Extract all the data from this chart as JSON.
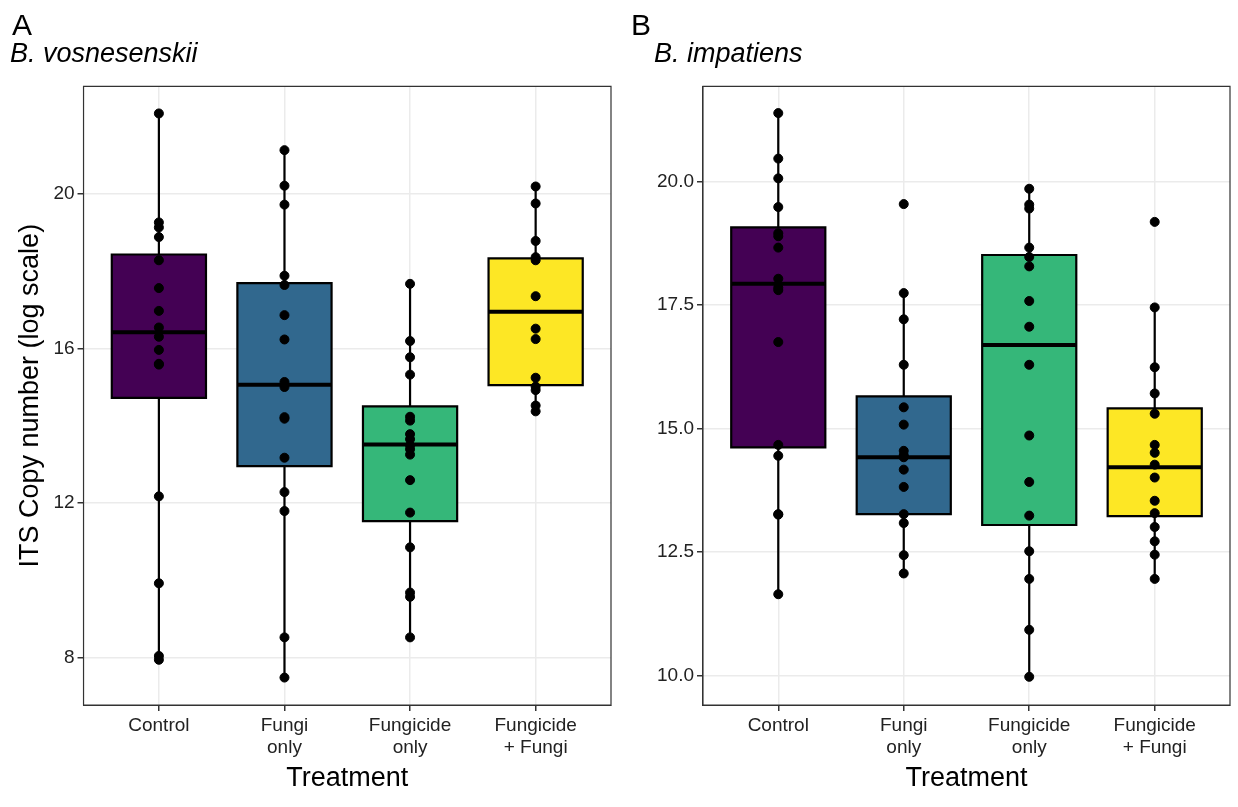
{
  "chart_data": [
    {
      "type": "box",
      "title": "B. vosnesenskii",
      "xlabel": "Treatment",
      "ylabel": "ITS Copy number (log scale)",
      "annotations": [
        "A"
      ],
      "categories": [
        "Control",
        "Fungi\nonly",
        "Fungicide\nonly",
        "Fungicide\n+ Fungi"
      ],
      "colors": [
        "#440154",
        "#31688e",
        "#35b779",
        "#fde725"
      ],
      "boxes": [
        {
          "low": 7.94,
          "q1": 14.72,
          "median": 16.42,
          "q3": 18.43,
          "high": 22.08
        },
        {
          "low": 7.48,
          "q1": 12.95,
          "median": 15.06,
          "q3": 17.69,
          "high": 21.13
        },
        {
          "low": 8.52,
          "q1": 11.53,
          "median": 13.51,
          "q3": 14.5,
          "high": 17.67
        },
        {
          "low": 14.37,
          "q1": 15.05,
          "median": 16.95,
          "q3": 18.33,
          "high": 20.19
        }
      ],
      "series": [
        {
          "type": "scatter",
          "color": "#000000",
          "x": [
            "Control",
            "Control",
            "Control",
            "Control",
            "Control",
            "Control",
            "Control",
            "Control",
            "Control",
            "Control",
            "Control",
            "Control",
            "Control",
            "Control",
            "Control",
            "Control",
            "Fungi\nonly",
            "Fungi\nonly",
            "Fungi\nonly",
            "Fungi\nonly",
            "Fungi\nonly",
            "Fungi\nonly",
            "Fungi\nonly",
            "Fungi\nonly",
            "Fungi\nonly",
            "Fungi\nonly",
            "Fungi\nonly",
            "Fungi\nonly",
            "Fungi\nonly",
            "Fungi\nonly",
            "Fungi\nonly",
            "Fungi\nonly",
            "Fungicide\nonly",
            "Fungicide\nonly",
            "Fungicide\nonly",
            "Fungicide\nonly",
            "Fungicide\nonly",
            "Fungicide\nonly",
            "Fungicide\nonly",
            "Fungicide\nonly",
            "Fungicide\nonly",
            "Fungicide\nonly",
            "Fungicide\nonly",
            "Fungicide\nonly",
            "Fungicide\nonly",
            "Fungicide\nonly",
            "Fungicide\nonly",
            "Fungicide\nonly",
            "Fungicide\nonly",
            "Fungicide\n+ Fungi",
            "Fungicide\n+ Fungi",
            "Fungicide\n+ Fungi",
            "Fungicide\n+ Fungi",
            "Fungicide\n+ Fungi",
            "Fungicide\n+ Fungi",
            "Fungicide\n+ Fungi",
            "Fungicide\n+ Fungi",
            "Fungicide\n+ Fungi",
            "Fungicide\n+ Fungi",
            "Fungicide\n+ Fungi",
            "Fungicide\n+ Fungi",
            "Fungicide\n+ Fungi"
          ],
          "values": [
            22.08,
            19.26,
            19.13,
            18.88,
            18.28,
            17.56,
            16.97,
            16.54,
            16.3,
            15.96,
            15.6,
            15.58,
            12.17,
            9.92,
            8.04,
            7.94,
            21.13,
            20.21,
            19.72,
            17.88,
            17.64,
            16.86,
            16.23,
            15.13,
            15.0,
            14.22,
            14.18,
            13.17,
            12.28,
            11.79,
            8.52,
            7.48,
            17.67,
            16.19,
            15.77,
            15.32,
            14.23,
            14.13,
            13.78,
            13.65,
            13.49,
            13.39,
            13.25,
            12.59,
            11.75,
            10.85,
            9.68,
            9.57,
            8.52,
            20.19,
            19.75,
            18.78,
            18.36,
            18.28,
            17.35,
            16.51,
            16.24,
            15.24,
            15.01,
            14.92,
            14.52,
            14.37
          ]
        }
      ],
      "ylim": [
        6.77,
        22.78
      ],
      "yticks": [
        8,
        12,
        16,
        20
      ],
      "grid": true,
      "marker": "circle"
    },
    {
      "type": "box",
      "title": "B. impatiens",
      "xlabel": "Treatment",
      "annotations": [
        "B"
      ],
      "categories": [
        "Control",
        "Fungi\nonly",
        "Fungicide\nonly",
        "Fungicide\n+ Fungi"
      ],
      "colors": [
        "#440154",
        "#31688e",
        "#35b779",
        "#fde725"
      ],
      "boxes": [
        {
          "low": 11.65,
          "q1": 14.62,
          "median": 17.93,
          "q3": 19.07,
          "high": 21.38
        },
        {
          "low": 12.07,
          "q1": 13.27,
          "median": 14.42,
          "q3": 15.65,
          "high": 17.74
        },
        {
          "low": 9.98,
          "q1": 13.05,
          "median": 16.69,
          "q3": 18.51,
          "high": 19.85
        },
        {
          "low": 11.96,
          "q1": 13.23,
          "median": 14.22,
          "q3": 15.41,
          "high": 17.45
        }
      ],
      "series": [
        {
          "type": "scatter",
          "color": "#000000",
          "x": [
            "Control",
            "Control",
            "Control",
            "Control",
            "Control",
            "Control",
            "Control",
            "Control",
            "Control",
            "Control",
            "Control",
            "Control",
            "Control",
            "Control",
            "Control",
            "Control",
            "Fungi\nonly",
            "Fungi\nonly",
            "Fungi\nonly",
            "Fungi\nonly",
            "Fungi\nonly",
            "Fungi\nonly",
            "Fungi\nonly",
            "Fungi\nonly",
            "Fungi\nonly",
            "Fungi\nonly",
            "Fungi\nonly",
            "Fungi\nonly",
            "Fungi\nonly",
            "Fungi\nonly",
            "Fungi\nonly",
            "Fungicide\nonly",
            "Fungicide\nonly",
            "Fungicide\nonly",
            "Fungicide\nonly",
            "Fungicide\nonly",
            "Fungicide\nonly",
            "Fungicide\nonly",
            "Fungicide\nonly",
            "Fungicide\nonly",
            "Fungicide\nonly",
            "Fungicide\nonly",
            "Fungicide\nonly",
            "Fungicide\nonly",
            "Fungicide\nonly",
            "Fungicide\nonly",
            "Fungicide\nonly",
            "Fungicide\n+ Fungi",
            "Fungicide\n+ Fungi",
            "Fungicide\n+ Fungi",
            "Fungicide\n+ Fungi",
            "Fungicide\n+ Fungi",
            "Fungicide\n+ Fungi",
            "Fungicide\n+ Fungi",
            "Fungicide\n+ Fungi",
            "Fungicide\n+ Fungi",
            "Fungicide\n+ Fungi",
            "Fungicide\n+ Fungi",
            "Fungicide\n+ Fungi",
            "Fungicide\n+ Fungi",
            "Fungicide\n+ Fungi",
            "Fungicide\n+ Fungi"
          ],
          "values": [
            21.38,
            20.46,
            20.06,
            19.48,
            18.95,
            18.89,
            18.66,
            18.03,
            17.85,
            17.8,
            16.75,
            14.67,
            14.45,
            13.27,
            13.26,
            11.65,
            19.54,
            17.74,
            17.21,
            16.29,
            15.43,
            15.08,
            14.55,
            14.46,
            14.42,
            14.17,
            13.82,
            13.27,
            13.09,
            12.44,
            12.07,
            19.85,
            19.53,
            19.45,
            18.66,
            18.47,
            18.28,
            17.58,
            17.06,
            16.29,
            14.86,
            13.92,
            13.24,
            12.52,
            11.96,
            10.93,
            9.98,
            19.18,
            17.45,
            16.24,
            15.71,
            15.3,
            14.67,
            14.51,
            14.27,
            14.01,
            13.54,
            13.29,
            13.01,
            12.72,
            12.45,
            11.96
          ]
        }
      ],
      "ylim": [
        9.41,
        21.92
      ],
      "yticks": [
        {
          "value": 10,
          "label": "10.0"
        },
        {
          "value": 12.5,
          "label": "12.5"
        },
        {
          "value": 15,
          "label": "15.0"
        },
        {
          "value": 17.5,
          "label": "17.5"
        },
        {
          "value": 20,
          "label": "20.0"
        }
      ],
      "grid": true,
      "marker": "circle"
    }
  ]
}
